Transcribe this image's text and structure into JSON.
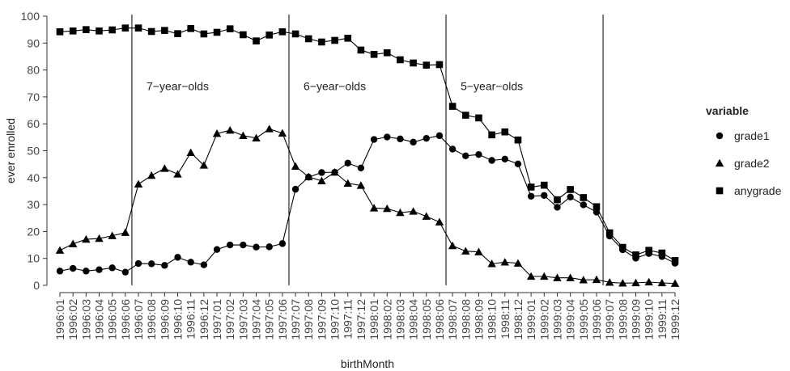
{
  "chart_data": {
    "type": "line",
    "xlabel": "birthMonth",
    "ylabel": "ever enrolled",
    "ylim": [
      0,
      100
    ],
    "yticks": [
      0,
      10,
      20,
      30,
      40,
      50,
      60,
      70,
      80,
      90,
      100
    ],
    "x": [
      "1996:01",
      "1996:02",
      "1996:03",
      "1996:04",
      "1996:05",
      "1996:06",
      "1996:07",
      "1996:08",
      "1996:09",
      "1996:10",
      "1996:11",
      "1996:12",
      "1997:01",
      "1997:02",
      "1997:03",
      "1997:04",
      "1997:05",
      "1997:06",
      "1997:07",
      "1997:08",
      "1997:09",
      "1997:10",
      "1997:11",
      "1997:12",
      "1998:01",
      "1998:02",
      "1998:03",
      "1998:04",
      "1998:05",
      "1998:06",
      "1998:07",
      "1998:08",
      "1998:09",
      "1998:10",
      "1998:11",
      "1998:12",
      "1999:01",
      "1999:02",
      "1999:03",
      "1999:04",
      "1999:05",
      "1999:06",
      "1999:07",
      "1999:08",
      "1999:09",
      "1999:10",
      "1999:11",
      "1999:12"
    ],
    "series": [
      {
        "name": "grade1",
        "marker": "circle",
        "values": [
          5.3,
          6.3,
          5.3,
          5.8,
          6.5,
          4.9,
          8.1,
          8.0,
          7.4,
          10.4,
          8.6,
          7.6,
          13.3,
          15.0,
          15.0,
          14.2,
          14.3,
          15.5,
          35.7,
          40.2,
          41.9,
          42.0,
          45.4,
          43.6,
          54.2,
          55.1,
          54.4,
          53.2,
          54.6,
          55.6,
          50.6,
          48.1,
          48.6,
          46.4,
          46.9,
          45.1,
          33.1,
          33.4,
          29.0,
          32.8,
          29.9,
          27.2,
          18.3,
          13.2,
          10.1,
          11.8,
          10.7,
          8.2
        ]
      },
      {
        "name": "grade2",
        "marker": "triangle",
        "values": [
          13.0,
          15.4,
          17.1,
          17.4,
          18.4,
          19.6,
          37.6,
          40.8,
          43.4,
          41.3,
          49.3,
          44.6,
          56.4,
          57.6,
          55.6,
          54.7,
          58.1,
          56.5,
          44.2,
          40.3,
          38.8,
          42.0,
          37.9,
          37.1,
          28.7,
          28.5,
          27.0,
          27.5,
          25.6,
          23.5,
          14.7,
          12.7,
          12.4,
          8.0,
          8.6,
          8.2,
          3.3,
          3.3,
          2.8,
          2.8,
          2.0,
          2.1,
          1.1,
          0.8,
          0.9,
          1.2,
          0.9,
          0.7
        ]
      },
      {
        "name": "anygrade",
        "marker": "square",
        "values": [
          94.2,
          94.5,
          95.0,
          94.5,
          94.9,
          95.6,
          95.6,
          94.3,
          94.7,
          93.5,
          95.4,
          93.4,
          94.0,
          95.3,
          93.1,
          90.8,
          93.0,
          94.2,
          93.4,
          91.6,
          90.4,
          91.0,
          91.8,
          87.4,
          85.8,
          86.4,
          83.8,
          82.6,
          81.8,
          82.0,
          66.5,
          63.2,
          62.2,
          55.9,
          57.0,
          54.0,
          36.5,
          37.2,
          31.8,
          35.6,
          32.6,
          29.2,
          19.5,
          14.1,
          11.3,
          13.0,
          12.0,
          9.2
        ]
      }
    ],
    "cutoffs": [
      "1996:06",
      "1997:06",
      "1998:06",
      "1999:06"
    ],
    "annotations": [
      {
        "text": "7−year−olds",
        "at": "1996:10",
        "y": 74
      },
      {
        "text": "6−year−olds",
        "at": "1997:10",
        "y": 74
      },
      {
        "text": "5−year−olds",
        "at": "1998:10",
        "y": 74
      }
    ],
    "legend": {
      "title": "variable",
      "position": "right"
    },
    "grid": false
  }
}
